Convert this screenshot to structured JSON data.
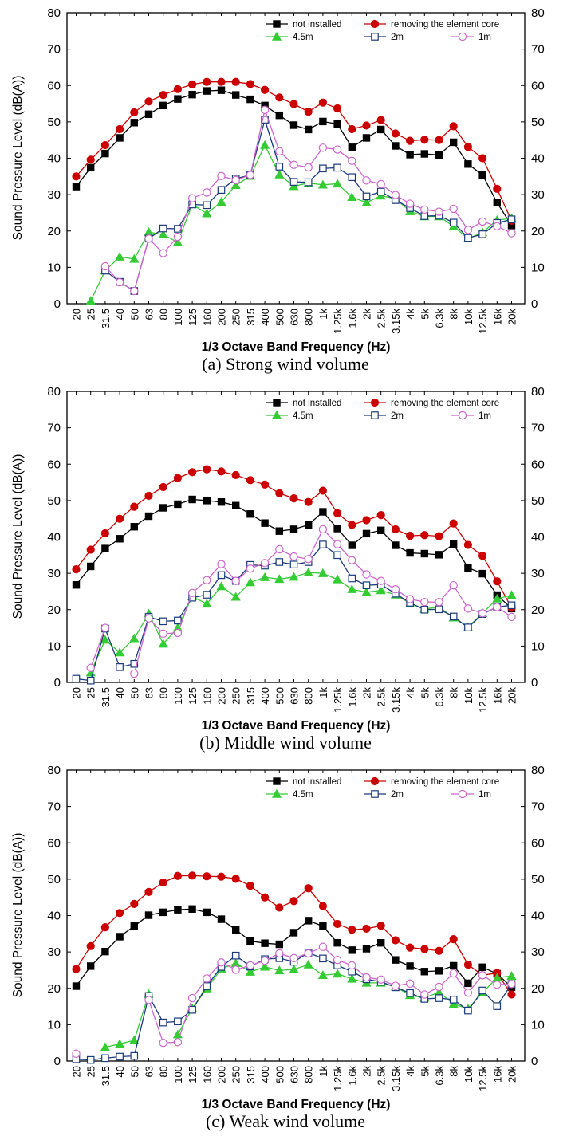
{
  "chart_data": [
    {
      "type": "line",
      "caption": "(a) Strong wind volume",
      "xlabel": "1/3 Octave Band Frequency (Hz)",
      "ylabel": "Sound Pressure Level (dB(A))",
      "ylim": [
        0,
        80
      ],
      "yticks": [
        0,
        10,
        20,
        30,
        40,
        50,
        60,
        70,
        80
      ],
      "categories": [
        "20",
        "25",
        "31.5",
        "40",
        "50",
        "63",
        "80",
        "100",
        "125",
        "160",
        "200",
        "250",
        "315",
        "400",
        "500",
        "630",
        "800",
        "1k",
        "1.25k",
        "1.6k",
        "2k",
        "2.5k",
        "3.15k",
        "4k",
        "5k",
        "6.3k",
        "8k",
        "10k",
        "12.5k",
        "16k",
        "20k"
      ],
      "legend": "top-right",
      "series": [
        {
          "name": "not installed",
          "color": "#000000",
          "marker": "square-filled",
          "values": [
            32.2,
            37.4,
            41.3,
            45.6,
            49.8,
            52.1,
            54.5,
            56.3,
            57.5,
            58.5,
            58.7,
            57.4,
            56.2,
            54.5,
            51.8,
            49.1,
            47.9,
            50.1,
            49.4,
            43.0,
            45.6,
            47.9,
            43.4,
            41.0,
            41.2,
            40.9,
            44.4,
            38.4,
            35.4,
            27.8,
            21.5
          ]
        },
        {
          "name": "removing the element core",
          "color": "#cc0000",
          "marker": "circle-filled",
          "values": [
            35.0,
            39.6,
            43.6,
            48.0,
            52.6,
            55.6,
            57.4,
            59.0,
            60.3,
            61.0,
            61.0,
            61.0,
            60.4,
            58.8,
            56.7,
            54.9,
            52.8,
            55.3,
            53.7,
            48.0,
            49.0,
            50.5,
            46.8,
            44.8,
            45.1,
            45.0,
            48.8,
            43.1,
            40.0,
            31.6,
            22.8
          ]
        },
        {
          "name": "4.5m",
          "color": "#33cc33",
          "marker": "triangle-filled",
          "values": [
            null,
            0.8,
            9.1,
            12.9,
            12.3,
            19.7,
            19.0,
            16.9,
            27.3,
            24.8,
            28.0,
            32.6,
            35.1,
            43.6,
            35.5,
            32.3,
            33.2,
            32.7,
            33.0,
            29.3,
            27.8,
            29.7,
            28.9,
            25.4,
            24.0,
            24.0,
            21.3,
            17.9,
            19.6,
            23.0,
            23.5
          ]
        },
        {
          "name": "2m",
          "color": "#1a3a7a",
          "marker": "square-open",
          "values": [
            null,
            null,
            9.1,
            6.0,
            3.5,
            17.9,
            20.7,
            20.6,
            27.3,
            27.1,
            31.3,
            34.4,
            35.4,
            50.6,
            37.7,
            33.5,
            33.4,
            37.2,
            37.4,
            34.8,
            29.5,
            30.8,
            28.5,
            26.3,
            24.1,
            24.2,
            22.3,
            18.1,
            19.1,
            22.2,
            23.2
          ]
        },
        {
          "name": "1m",
          "color": "#cc66cc",
          "marker": "circle-open",
          "values": [
            null,
            null,
            10.3,
            5.9,
            3.5,
            17.9,
            13.9,
            18.4,
            29.0,
            30.6,
            35.1,
            34.0,
            35.4,
            53.3,
            41.9,
            38.2,
            37.5,
            42.9,
            42.4,
            39.3,
            33.9,
            32.9,
            29.9,
            27.5,
            25.9,
            25.3,
            26.1,
            20.3,
            22.6,
            21.3,
            19.4
          ]
        }
      ]
    },
    {
      "type": "line",
      "caption": "(b) Middle wind volume",
      "xlabel": "1/3 Octave Band Frequency (Hz)",
      "ylabel": "Sound Pressure Level (dB(A))",
      "ylim": [
        0,
        80
      ],
      "yticks": [
        0,
        10,
        20,
        30,
        40,
        50,
        60,
        70,
        80
      ],
      "categories": [
        "20",
        "25",
        "31.5",
        "40",
        "50",
        "63",
        "80",
        "100",
        "125",
        "160",
        "200",
        "250",
        "315",
        "400",
        "500",
        "630",
        "800",
        "1k",
        "1.25k",
        "1.6k",
        "2k",
        "2.5k",
        "3.15k",
        "4k",
        "5k",
        "6.3k",
        "8k",
        "10k",
        "12.5k",
        "16k",
        "20k"
      ],
      "legend": "top-right",
      "series": [
        {
          "name": "not installed",
          "color": "#000000",
          "marker": "square-filled",
          "values": [
            26.8,
            31.9,
            36.8,
            39.5,
            42.8,
            45.7,
            48.0,
            49.0,
            50.3,
            50.0,
            49.6,
            48.6,
            46.3,
            43.8,
            41.6,
            42.1,
            43.3,
            46.9,
            42.3,
            37.7,
            40.9,
            41.8,
            37.7,
            35.6,
            35.4,
            35.1,
            38.0,
            31.5,
            29.9,
            24.0,
            20.3
          ]
        },
        {
          "name": "removing the element core",
          "color": "#cc0000",
          "marker": "circle-filled",
          "values": [
            31.1,
            36.5,
            41.0,
            45.0,
            48.3,
            51.3,
            53.7,
            56.2,
            57.8,
            58.6,
            58.0,
            57.0,
            55.6,
            54.4,
            52.0,
            50.6,
            49.6,
            52.7,
            46.5,
            43.3,
            44.6,
            46.0,
            42.1,
            40.3,
            40.5,
            40.2,
            43.7,
            37.8,
            34.8,
            27.8,
            20.5
          ]
        },
        {
          "name": "4.5m",
          "color": "#33cc33",
          "marker": "triangle-filled",
          "values": [
            null,
            2.7,
            11.7,
            8.2,
            12.1,
            18.9,
            10.6,
            15.0,
            23.6,
            21.6,
            26.4,
            23.5,
            27.5,
            28.9,
            28.4,
            29.0,
            30.2,
            30.0,
            28.3,
            25.6,
            24.8,
            25.3,
            24.1,
            21.7,
            20.2,
            20.7,
            17.8,
            15.2,
            19.0,
            23.0,
            24.0
          ]
        },
        {
          "name": "2m",
          "color": "#1a3a7a",
          "marker": "square-open",
          "values": [
            1.0,
            0.5,
            14.8,
            4.2,
            5.1,
            18.0,
            16.8,
            17.0,
            23.3,
            24.1,
            29.5,
            27.9,
            32.3,
            32.1,
            33.1,
            32.4,
            33.1,
            37.9,
            35.0,
            28.6,
            26.7,
            26.9,
            24.4,
            21.9,
            20.0,
            20.1,
            18.1,
            15.1,
            18.8,
            20.7,
            21.2
          ]
        },
        {
          "name": "1m",
          "color": "#cc66cc",
          "marker": "circle-open",
          "values": [
            null,
            4.0,
            15.0,
            null,
            2.4,
            17.6,
            13.4,
            13.6,
            24.6,
            28.1,
            32.5,
            27.9,
            31.3,
            32.8,
            36.6,
            34.6,
            33.9,
            42.1,
            38.0,
            33.6,
            29.7,
            27.9,
            25.6,
            22.9,
            22.1,
            22.1,
            26.7,
            20.3,
            19.0,
            20.7,
            18.0
          ]
        }
      ]
    },
    {
      "type": "line",
      "caption": "(c) Weak wind volume",
      "xlabel": "1/3 Octave Band Frequency (Hz)",
      "ylabel": "Sound Pressure Level (dB(A))",
      "ylim": [
        0,
        80
      ],
      "yticks": [
        0,
        10,
        20,
        30,
        40,
        50,
        60,
        70,
        80
      ],
      "categories": [
        "20",
        "25",
        "31.5",
        "40",
        "50",
        "63",
        "80",
        "100",
        "125",
        "160",
        "200",
        "250",
        "315",
        "400",
        "500",
        "630",
        "800",
        "1k",
        "1.25k",
        "1.6k",
        "2k",
        "2.5k",
        "3.15k",
        "4k",
        "5k",
        "6.3k",
        "8k",
        "10k",
        "12.5k",
        "16k",
        "20k"
      ],
      "legend": "top-right",
      "series": [
        {
          "name": "not installed",
          "color": "#000000",
          "marker": "square-filled",
          "values": [
            20.6,
            26.1,
            30.1,
            34.2,
            37.1,
            40.1,
            40.9,
            41.6,
            41.8,
            40.9,
            39.0,
            36.1,
            33.0,
            32.4,
            32.1,
            35.3,
            38.6,
            37.1,
            32.5,
            30.5,
            30.9,
            32.5,
            27.8,
            26.1,
            24.6,
            24.8,
            26.2,
            21.4,
            25.8,
            24.0,
            20.3
          ]
        },
        {
          "name": "removing the element core",
          "color": "#cc0000",
          "marker": "circle-filled",
          "values": [
            25.3,
            31.6,
            36.8,
            40.7,
            43.2,
            46.5,
            49.1,
            50.9,
            51.0,
            50.8,
            50.7,
            50.1,
            48.2,
            45.0,
            42.2,
            44.0,
            47.5,
            42.6,
            37.7,
            36.1,
            36.4,
            37.2,
            33.2,
            31.2,
            30.8,
            30.3,
            33.5,
            26.5,
            23.6,
            24.2,
            18.3
          ]
        },
        {
          "name": "4.5m",
          "color": "#33cc33",
          "marker": "triangle-filled",
          "values": [
            null,
            null,
            3.8,
            4.7,
            5.7,
            18.4,
            null,
            7.3,
            14.5,
            19.9,
            25.4,
            26.9,
            24.5,
            25.9,
            24.9,
            25.2,
            26.5,
            23.6,
            24.0,
            22.6,
            21.5,
            21.5,
            20.4,
            18.1,
            17.4,
            18.9,
            15.7,
            14.4,
            18.8,
            22.9,
            23.4
          ]
        },
        {
          "name": "2m",
          "color": "#1a3a7a",
          "marker": "square-open",
          "values": [
            0.5,
            0.3,
            0.8,
            1.2,
            1.4,
            17.9,
            10.6,
            10.9,
            14.1,
            20.6,
            25.9,
            29.0,
            26.0,
            28.0,
            28.3,
            27.3,
            29.8,
            28.2,
            26.3,
            24.6,
            22.5,
            21.8,
            20.3,
            18.7,
            17.1,
            17.3,
            16.9,
            13.9,
            19.4,
            15.1,
            21.2
          ]
        },
        {
          "name": "1m",
          "color": "#cc66cc",
          "marker": "circle-open",
          "values": [
            2.0,
            null,
            null,
            null,
            null,
            16.8,
            5.0,
            5.2,
            17.3,
            22.7,
            27.1,
            25.1,
            26.3,
            27.6,
            29.6,
            28.3,
            29.6,
            31.4,
            27.8,
            26.3,
            23.0,
            22.4,
            20.7,
            21.3,
            18.3,
            20.4,
            24.1,
            18.8,
            23.6,
            21.0,
            21.2
          ]
        }
      ]
    }
  ]
}
